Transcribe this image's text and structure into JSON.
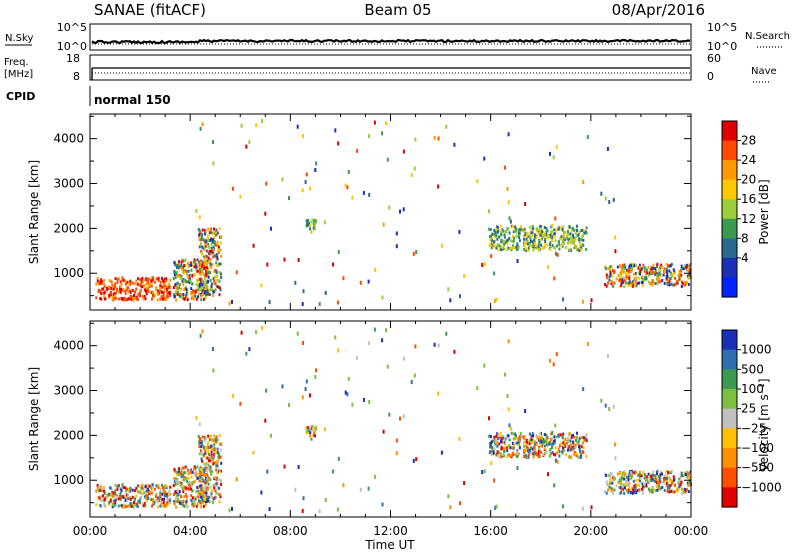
{
  "header": {
    "station": "SANAE (fitACF)",
    "beam": "Beam 05",
    "date": "08/Apr/2016"
  },
  "strip_panels": {
    "nsky": {
      "label": "N.Sky",
      "ticks": [
        "10^5",
        "10^0"
      ]
    },
    "nsearch": {
      "label": "N.Search",
      "ticks": [
        "10^5",
        "10^0"
      ]
    },
    "freq": {
      "label_line1": "Freq.",
      "label_line2": "[MHz]",
      "ticks": [
        "18",
        "8"
      ]
    },
    "nave": {
      "label": "Nave",
      "ticks": [
        "60",
        "0"
      ]
    },
    "cpid": {
      "label": "CPID",
      "value": "normal 150"
    }
  },
  "chart_data": [
    {
      "type": "heatmap",
      "parameter": "Power",
      "ylabel": "Slant Range [km]",
      "ylim": [
        180,
        4550
      ],
      "yticks": [
        "1000",
        "2000",
        "3000",
        "4000"
      ],
      "xlim": [
        0,
        24
      ],
      "colorbar": {
        "label": "Power [dB]",
        "ticks": [
          "28",
          "24",
          "20",
          "16",
          "12",
          "8",
          "4"
        ],
        "colors": [
          "#e00000",
          "#ff4a00",
          "#ff9a00",
          "#ffc800",
          "#9ace3a",
          "#3c9a50",
          "#2a6a8c",
          "#1c2fb8",
          "#0022ff"
        ]
      },
      "echo_regions": [
        {
          "t": [
            0.2,
            3.2
          ],
          "r": [
            400,
            900
          ],
          "level": "high"
        },
        {
          "t": [
            3.3,
            4.7
          ],
          "r": [
            400,
            1300
          ],
          "level": "mixed"
        },
        {
          "t": [
            4.3,
            5.2
          ],
          "r": [
            500,
            2000
          ],
          "level": "mixed"
        },
        {
          "t": [
            8.6,
            9.0
          ],
          "r": [
            1900,
            2200
          ],
          "level": "mid"
        },
        {
          "t": [
            15.9,
            19.8
          ],
          "r": [
            1500,
            2050
          ],
          "level": "mid"
        },
        {
          "t": [
            20.5,
            24.0
          ],
          "r": [
            700,
            1200
          ],
          "level": "mixed"
        }
      ]
    },
    {
      "type": "heatmap",
      "parameter": "Velocity",
      "ylabel": "Slant Range [km]",
      "ylim": [
        180,
        4550
      ],
      "yticks": [
        "1000",
        "2000",
        "3000",
        "4000"
      ],
      "xlim": [
        0,
        24
      ],
      "xticks": [
        "00:00",
        "04:00",
        "08:00",
        "12:00",
        "16:00",
        "20:00",
        "00:00"
      ],
      "xlabel": "Time UT",
      "colorbar": {
        "label": "Velocity  [m s⁻¹]",
        "ticks": [
          "1000",
          "500",
          "100",
          "25",
          "−25",
          "−100",
          "−500",
          "−1000"
        ],
        "colors": [
          "#1a2fb8",
          "#2f6fb0",
          "#3c9a50",
          "#7cc040",
          "#c0c0c0",
          "#ffc000",
          "#ff9000",
          "#ff5000",
          "#e00000"
        ]
      }
    }
  ]
}
